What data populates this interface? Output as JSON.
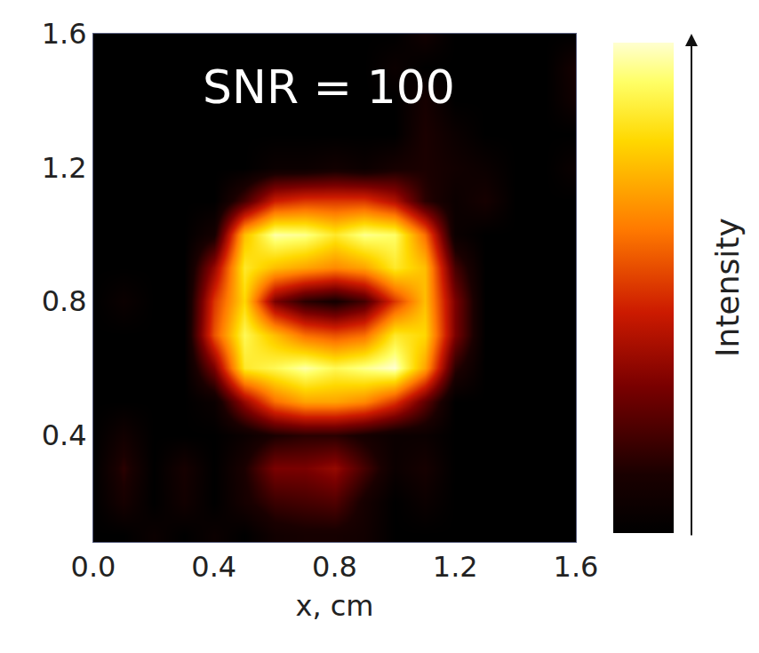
{
  "chart_data": {
    "type": "heatmap",
    "annotation": "SNR = 100",
    "x_label": "x, cm",
    "colorbar_label": "Intensity",
    "x": [
      0,
      0.1,
      0.2,
      0.3,
      0.4,
      0.5,
      0.6,
      0.7,
      0.8,
      0.9,
      1.0,
      1.1,
      1.2,
      1.3,
      1.4,
      1.5,
      1.6
    ],
    "y": [
      0.1,
      0.2,
      0.3,
      0.4,
      0.5,
      0.6,
      0.7,
      0.8,
      0.9,
      1.0,
      1.1,
      1.2,
      1.3,
      1.4,
      1.5,
      1.6
    ],
    "cells": [
      [
        0,
        0,
        0.05,
        0,
        0.05,
        0,
        0.08,
        0.1,
        0.1,
        0.08,
        0,
        0,
        0,
        0,
        0,
        0,
        0
      ],
      [
        0,
        0.1,
        0,
        0.08,
        0,
        0.1,
        0.18,
        0.2,
        0.22,
        0.1,
        0,
        0.05,
        0,
        0,
        0,
        0,
        0
      ],
      [
        0,
        0.15,
        0,
        0.1,
        0,
        0.12,
        0.3,
        0.3,
        0.35,
        0.2,
        0.05,
        0.1,
        0,
        0,
        0,
        0,
        0
      ],
      [
        0,
        0.08,
        0,
        0,
        0,
        0.05,
        0.12,
        0.15,
        0.15,
        0.1,
        0.05,
        0.05,
        0,
        0,
        0,
        0,
        0
      ],
      [
        0,
        0,
        0,
        0,
        0.05,
        0.35,
        0.6,
        0.7,
        0.7,
        0.65,
        0.5,
        0.25,
        0,
        0,
        0,
        0,
        0
      ],
      [
        0,
        0,
        0,
        0,
        0.3,
        0.85,
        0.9,
        0.97,
        0.9,
        0.95,
        1.0,
        0.7,
        0.15,
        0,
        0,
        0,
        0
      ],
      [
        0,
        0,
        0,
        0,
        0.55,
        0.9,
        0.75,
        0.6,
        0.55,
        0.6,
        0.85,
        0.8,
        0.3,
        0,
        0,
        0,
        0
      ],
      [
        0,
        0.05,
        0,
        0,
        0.5,
        0.8,
        0.3,
        0.15,
        0.1,
        0.2,
        0.5,
        0.75,
        0.3,
        0,
        0,
        0,
        0
      ],
      [
        0,
        0,
        0,
        0,
        0.35,
        0.85,
        0.75,
        0.7,
        0.65,
        0.7,
        0.85,
        0.75,
        0.2,
        0,
        0,
        0,
        0
      ],
      [
        0,
        0,
        0,
        0,
        0.1,
        0.75,
        0.97,
        0.95,
        0.85,
        0.95,
        0.92,
        0.6,
        0.05,
        0,
        0,
        0,
        0
      ],
      [
        0,
        0,
        0,
        0,
        0,
        0.2,
        0.45,
        0.5,
        0.5,
        0.5,
        0.4,
        0.15,
        0.05,
        0.1,
        0,
        0,
        0
      ],
      [
        0,
        0,
        0,
        0,
        0,
        0,
        0.05,
        0.05,
        0.08,
        0.05,
        0.1,
        0.12,
        0.08,
        0.05,
        0,
        0,
        0.05
      ],
      [
        0,
        0,
        0,
        0,
        0,
        0,
        0,
        0,
        0,
        0,
        0,
        0.12,
        0.05,
        0,
        0,
        0,
        0
      ],
      [
        0,
        0,
        0,
        0,
        0,
        0,
        0,
        0,
        0,
        0,
        0,
        0.1,
        0,
        0,
        0,
        0,
        0.08
      ],
      [
        0,
        0,
        0,
        0,
        0,
        0,
        0,
        0,
        0,
        0,
        0.05,
        0,
        0,
        0,
        0,
        0,
        0.1
      ],
      [
        0,
        0,
        0,
        0,
        0,
        0,
        0,
        0,
        0,
        0,
        0,
        0.08,
        0,
        0,
        0,
        0,
        0
      ]
    ],
    "zlim": [
      0,
      1
    ],
    "xlim": [
      0,
      1.6
    ],
    "ylim": [
      0.08,
      1.6
    ],
    "xticks": [
      {
        "value": 0,
        "label": "0.0"
      },
      0.4,
      0.8,
      1.2,
      1.6
    ],
    "yticks": [
      0.4,
      0.8,
      1.2,
      1.6
    ]
  }
}
